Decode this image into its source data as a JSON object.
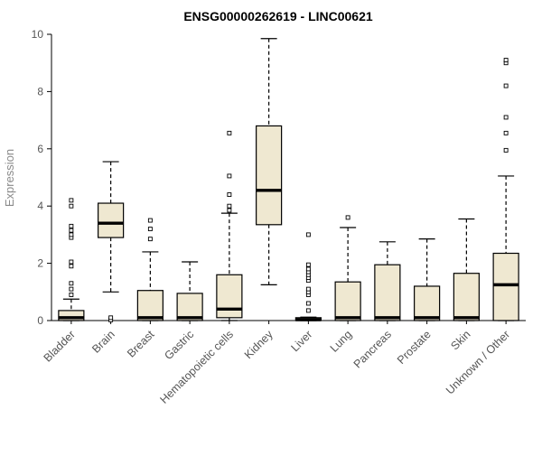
{
  "chart_data": {
    "type": "boxplot",
    "title": "ENSG00000262619 - LINC00621",
    "ylabel": "Expression",
    "ylim": [
      0,
      10
    ],
    "yticks": [
      0,
      2,
      4,
      6,
      8,
      10
    ],
    "box_fill_color": "#EFE8D1",
    "categories": [
      "Bladder",
      "Brain",
      "Breast",
      "Gastric",
      "Hematopoietic cells",
      "Kidney",
      "Liver",
      "Lung",
      "Pancreas",
      "Prostate",
      "Skin",
      "Unknown / Other"
    ],
    "boxes": [
      {
        "category": "Bladder",
        "low": 0,
        "q1": 0,
        "median": 0.1,
        "q3": 0.35,
        "high": 0.75,
        "outliers": [
          0.9,
          1.1,
          1.3,
          1.9,
          2.05,
          2.9,
          3.0,
          3.15,
          3.3,
          4.0,
          4.2
        ]
      },
      {
        "category": "Brain",
        "low": 1.0,
        "q1": 2.9,
        "median": 3.4,
        "q3": 4.1,
        "high": 5.55,
        "outliers": [
          0.02,
          0.1
        ]
      },
      {
        "category": "Breast",
        "low": 0,
        "q1": 0,
        "median": 0.1,
        "q3": 1.05,
        "high": 2.4,
        "outliers": [
          2.85,
          3.2,
          3.5
        ]
      },
      {
        "category": "Gastric",
        "low": 0,
        "q1": 0,
        "median": 0.1,
        "q3": 0.95,
        "high": 2.05,
        "outliers": []
      },
      {
        "category": "Hematopoietic cells",
        "low": 0,
        "q1": 0.1,
        "median": 0.4,
        "q3": 1.6,
        "high": 3.75,
        "outliers": [
          3.85,
          4.0,
          4.4,
          5.05,
          6.55
        ]
      },
      {
        "category": "Kidney",
        "low": 1.25,
        "q1": 3.35,
        "median": 4.55,
        "q3": 6.8,
        "high": 9.85,
        "outliers": []
      },
      {
        "category": "Liver",
        "low": 0,
        "q1": 0,
        "median": 0.03,
        "q3": 0.1,
        "high": 0.12,
        "outliers": [
          0.35,
          0.6,
          0.9,
          1.0,
          1.1,
          1.4,
          1.5,
          1.6,
          1.7,
          1.8,
          1.95,
          3.0
        ]
      },
      {
        "category": "Lung",
        "low": 0,
        "q1": 0,
        "median": 0.1,
        "q3": 1.35,
        "high": 3.25,
        "outliers": [
          3.6
        ]
      },
      {
        "category": "Pancreas",
        "low": 0,
        "q1": 0,
        "median": 0.1,
        "q3": 1.95,
        "high": 2.75,
        "outliers": []
      },
      {
        "category": "Prostate",
        "low": 0,
        "q1": 0,
        "median": 0.1,
        "q3": 1.2,
        "high": 2.85,
        "outliers": []
      },
      {
        "category": "Skin",
        "low": 0,
        "q1": 0,
        "median": 0.1,
        "q3": 1.65,
        "high": 3.55,
        "outliers": []
      },
      {
        "category": "Unknown / Other",
        "low": 0,
        "q1": 0,
        "median": 1.25,
        "q3": 2.35,
        "high": 5.05,
        "outliers": [
          5.95,
          6.55,
          7.1,
          8.2,
          9.0,
          9.1
        ]
      }
    ]
  }
}
